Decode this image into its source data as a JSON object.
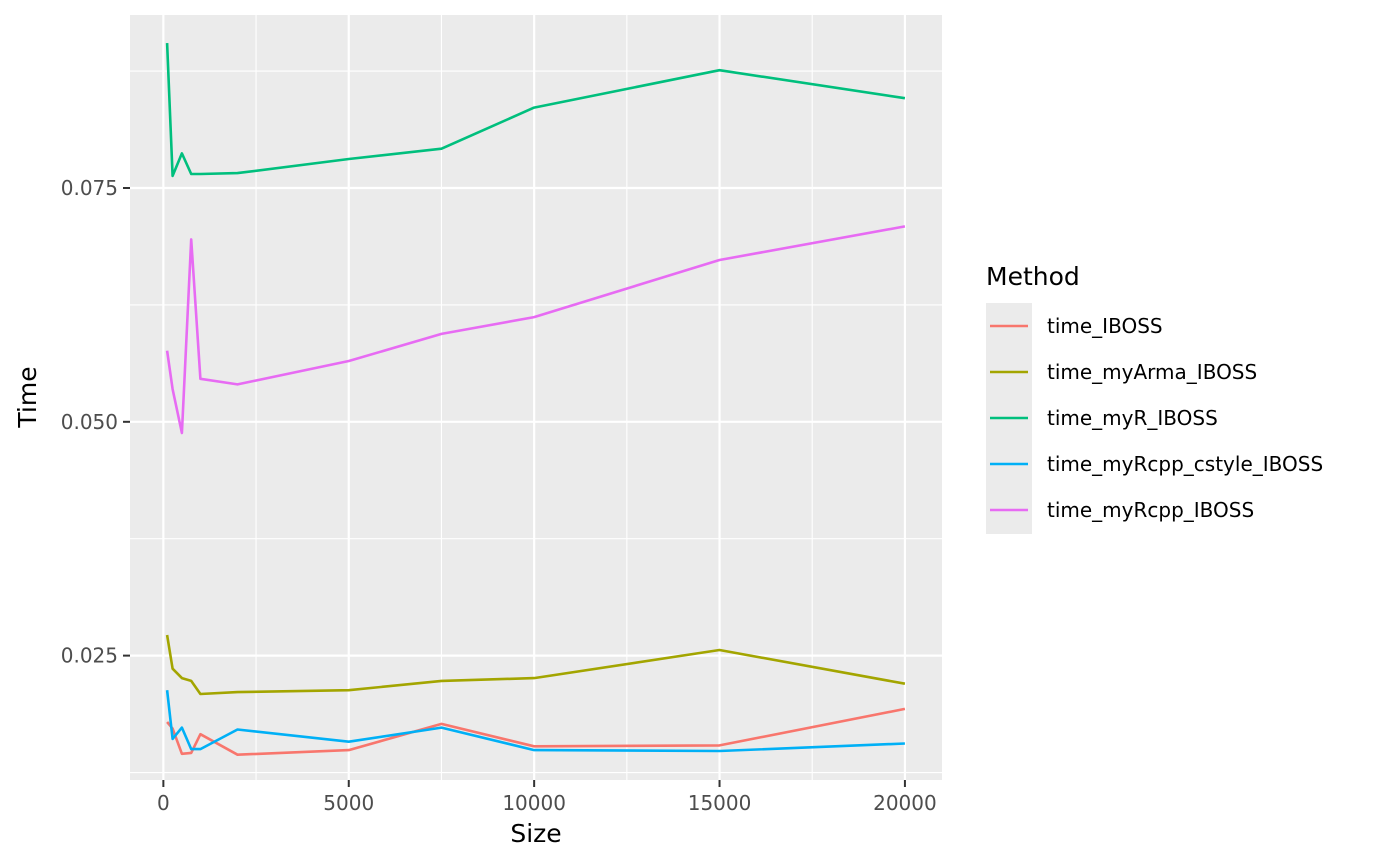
{
  "chart_data": {
    "type": "line",
    "xlabel": "Size",
    "ylabel": "Time",
    "xlim": [
      -900,
      21000
    ],
    "ylim": [
      0.0117,
      0.0935
    ],
    "x_ticks": [
      0,
      5000,
      10000,
      15000,
      20000
    ],
    "x_tick_labels": [
      "0",
      "5000",
      "10000",
      "15000",
      "20000"
    ],
    "y_ticks": [
      0.025,
      0.05,
      0.075
    ],
    "y_tick_labels": [
      "0.025",
      "0.050",
      "0.075"
    ],
    "x_minor": [
      2500,
      7500,
      12500,
      17500
    ],
    "y_minor": [
      0.0125,
      0.0375,
      0.0625,
      0.0875
    ],
    "grid": true,
    "legend": {
      "title": "Method",
      "position": "right"
    },
    "x": [
      100,
      250,
      500,
      750,
      1000,
      2000,
      5000,
      7500,
      10000,
      15000,
      20000
    ],
    "series": [
      {
        "name": "time_IBOSS",
        "color": "#F8766D",
        "values": [
          0.0179,
          0.0172,
          0.0145,
          0.0146,
          0.0166,
          0.0144,
          0.0149,
          0.0177,
          0.0153,
          0.0154,
          0.0193
        ]
      },
      {
        "name": "time_myArma_IBOSS",
        "color": "#A3A500",
        "values": [
          0.0272,
          0.0236,
          0.0226,
          0.0223,
          0.0209,
          0.0211,
          0.0213,
          0.0223,
          0.0226,
          0.0256,
          0.022
        ]
      },
      {
        "name": "time_myR_IBOSS",
        "color": "#00BF7D",
        "values": [
          0.0905,
          0.0763,
          0.0787,
          0.0765,
          0.0765,
          0.0766,
          0.0781,
          0.0792,
          0.0836,
          0.0876,
          0.0846
        ]
      },
      {
        "name": "time_myRcpp_cstyle_IBOSS",
        "color": "#00B0F6",
        "values": [
          0.0213,
          0.0161,
          0.0173,
          0.015,
          0.015,
          0.0171,
          0.0158,
          0.0173,
          0.0149,
          0.0148,
          0.0156
        ]
      },
      {
        "name": "time_myRcpp_IBOSS",
        "color": "#E76BF3",
        "values": [
          0.0576,
          0.0535,
          0.0488,
          0.0695,
          0.0546,
          0.054,
          0.0565,
          0.0594,
          0.0612,
          0.0673,
          0.0709
        ]
      }
    ]
  }
}
